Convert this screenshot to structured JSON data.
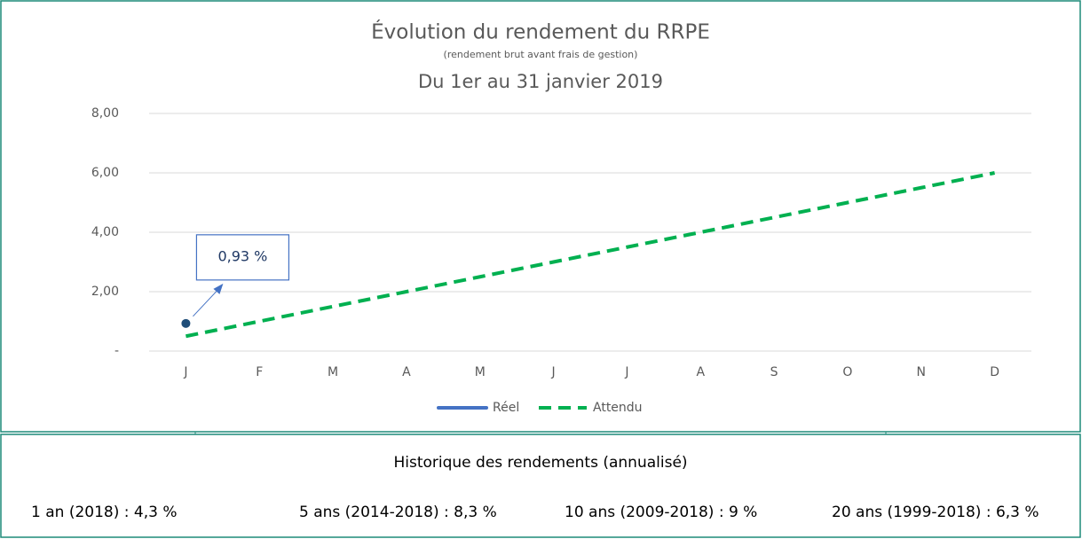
{
  "chart_data": {
    "type": "line",
    "title": "Évolution du rendement du RRPE",
    "subtitle": "(rendement brut avant frais de gestion)",
    "period": "Du 1er au 31 janvier 2019",
    "categories": [
      "J",
      "F",
      "M",
      "A",
      "M",
      "J",
      "J",
      "A",
      "S",
      "O",
      "N",
      "D"
    ],
    "series": [
      {
        "name": "Réel",
        "color": "#1f4e79",
        "legend_color": "#4472c4",
        "style": "solid",
        "values": [
          0.93,
          null,
          null,
          null,
          null,
          null,
          null,
          null,
          null,
          null,
          null,
          null
        ],
        "value_labels": [
          "0,93 %",
          null,
          null,
          null,
          null,
          null,
          null,
          null,
          null,
          null,
          null,
          null
        ]
      },
      {
        "name": "Attendu",
        "color": "#00b050",
        "style": "dashed",
        "values": [
          0.5,
          1,
          1.5,
          2,
          2.5,
          3,
          3.5,
          4,
          4.5,
          5,
          5.5,
          6
        ]
      }
    ],
    "ylim": [
      0,
      8
    ],
    "yticks": [
      {
        "value": 0,
        "label": "-"
      },
      {
        "value": 2,
        "label": "2,00"
      },
      {
        "value": 4,
        "label": "4,00"
      },
      {
        "value": 6,
        "label": "6,00"
      },
      {
        "value": 8,
        "label": "8,00"
      }
    ],
    "grid": true,
    "legend": "bottom"
  },
  "history": {
    "title": "Historique des rendements (annualisé)",
    "items": [
      "1 an (2018) : 4,3 %",
      "5 ans (2014-2018) : 8,3 %",
      "10 ans (2009-2018) : 9 %",
      "20 ans (1999-2018) : 6,3 %"
    ]
  }
}
